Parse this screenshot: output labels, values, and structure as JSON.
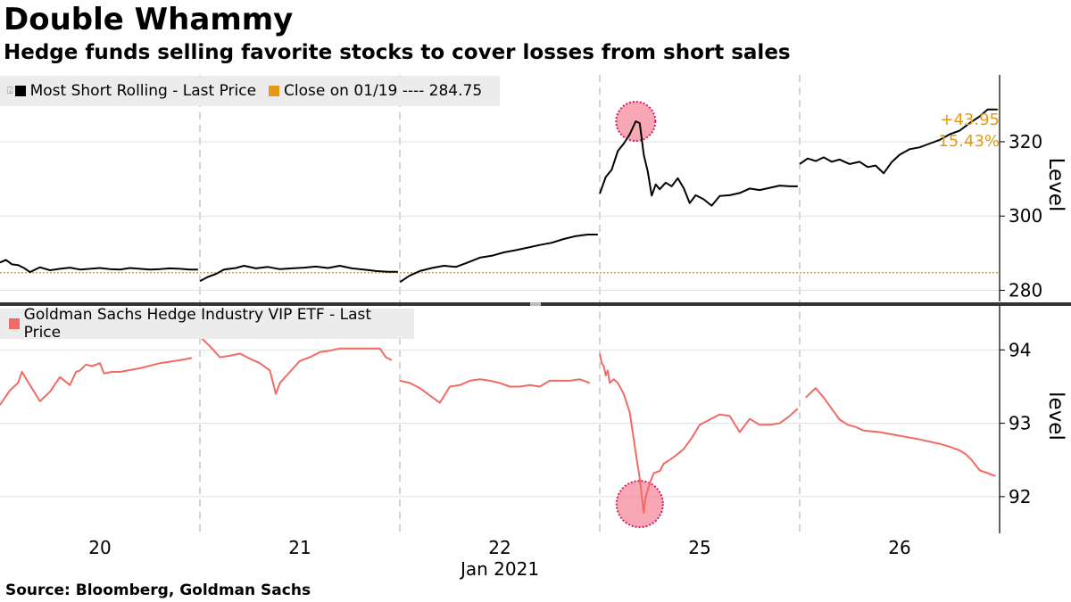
{
  "header": {
    "title": "Double Whammy",
    "subtitle": "Hedge funds selling favorite stocks to cover losses from short sales"
  },
  "footer": {
    "source": "Source: Bloomberg, Goldman Sachs"
  },
  "colors": {
    "top_line": "#000000",
    "close_line": "#e39a16",
    "bottom_line": "#f06b66",
    "highlight": "#f27a8c",
    "grid": "#bdbdbd"
  },
  "chart_data": [
    {
      "type": "line",
      "panel": "top",
      "legend": {
        "series": "Most Short Rolling - Last Price",
        "reference": "Close on 01/19 ---- 284.75"
      },
      "ylabel": "Level",
      "ylim": [
        277,
        338
      ],
      "yticks": [
        "280",
        "300",
        "320"
      ],
      "ytick_values": [
        280,
        300,
        320
      ],
      "reference_value": 284.75,
      "annotation": {
        "change": "+43.95",
        "percent": "15.43%"
      },
      "x_domain": [
        0,
        5
      ],
      "series": [
        {
          "name": "Most Short Rolling - Last Price",
          "segments": [
            {
              "x": [
                0.0,
                0.03,
                0.06,
                0.09,
                0.12,
                0.15,
                0.2,
                0.25,
                0.3,
                0.35,
                0.4,
                0.45,
                0.5,
                0.55,
                0.6,
                0.65,
                0.7,
                0.75,
                0.8,
                0.85,
                0.9,
                0.95,
                0.99
              ],
              "y": [
                287.5,
                288.2,
                287.0,
                286.8,
                286.0,
                284.9,
                286.2,
                285.4,
                285.8,
                286.1,
                285.6,
                285.8,
                286.0,
                285.7,
                285.6,
                286.0,
                285.8,
                285.6,
                285.7,
                285.9,
                285.8,
                285.6,
                285.6
              ]
            },
            {
              "x": [
                1.0,
                1.04,
                1.08,
                1.12,
                1.18,
                1.22,
                1.28,
                1.34,
                1.4,
                1.46,
                1.52,
                1.58,
                1.64,
                1.7,
                1.76,
                1.82,
                1.88,
                1.94,
                1.99
              ],
              "y": [
                282.5,
                283.6,
                284.4,
                285.6,
                286.0,
                286.6,
                285.9,
                286.3,
                285.7,
                285.9,
                286.1,
                286.4,
                286.0,
                286.6,
                285.9,
                285.6,
                285.2,
                285.0,
                285.0
              ]
            },
            {
              "x": [
                2.0,
                2.05,
                2.1,
                2.16,
                2.22,
                2.28,
                2.34,
                2.4,
                2.46,
                2.52,
                2.58,
                2.64,
                2.7,
                2.76,
                2.82,
                2.88,
                2.94,
                2.99
              ],
              "y": [
                282.2,
                284.0,
                285.2,
                286.0,
                286.6,
                286.3,
                287.5,
                288.8,
                289.3,
                290.2,
                290.8,
                291.5,
                292.2,
                292.8,
                293.8,
                294.6,
                295.0,
                295.0
              ]
            },
            {
              "x": [
                3.0,
                3.03,
                3.06,
                3.09,
                3.12,
                3.15,
                3.18,
                3.2,
                3.22,
                3.24,
                3.26,
                3.28,
                3.3,
                3.33,
                3.36,
                3.39,
                3.42,
                3.45,
                3.48,
                3.52,
                3.56,
                3.6,
                3.65,
                3.7,
                3.75,
                3.8,
                3.85,
                3.9,
                3.95,
                3.99
              ],
              "y": [
                306.0,
                310.5,
                312.5,
                317.5,
                319.5,
                322.0,
                325.5,
                325.0,
                316.5,
                312.0,
                305.5,
                308.5,
                307.2,
                309.0,
                308.0,
                310.2,
                307.5,
                303.5,
                305.6,
                304.5,
                302.8,
                305.4,
                305.6,
                306.2,
                307.4,
                307.0,
                307.6,
                308.2,
                308.0,
                308.0
              ]
            },
            {
              "x": [
                4.0,
                4.04,
                4.08,
                4.12,
                4.16,
                4.2,
                4.25,
                4.3,
                4.34,
                4.38,
                4.42,
                4.46,
                4.5,
                4.55,
                4.6,
                4.65,
                4.7,
                4.75,
                4.8,
                4.85,
                4.9,
                4.94,
                4.99
              ],
              "y": [
                314.0,
                315.5,
                314.8,
                315.8,
                314.6,
                315.2,
                314.0,
                314.6,
                313.2,
                313.6,
                311.5,
                314.5,
                316.5,
                318.0,
                318.5,
                319.5,
                320.5,
                322.0,
                323.0,
                325.0,
                326.8,
                328.7,
                328.7
              ]
            }
          ]
        },
        {
          "name": "Close on 01/19",
          "constant": 284.75
        }
      ]
    },
    {
      "type": "line",
      "panel": "bottom",
      "legend": {
        "series": "Goldman Sachs Hedge Industry VIP ETF - Last Price"
      },
      "ylabel": "level",
      "ylim": [
        91.5,
        94.6
      ],
      "yticks": [
        "92",
        "93",
        "94"
      ],
      "ytick_values": [
        92,
        93,
        94
      ],
      "x_domain": [
        0,
        5
      ],
      "x_ticks": [
        {
          "label": "20",
          "x": 0.5
        },
        {
          "label": "21",
          "x": 1.5
        },
        {
          "label": "22",
          "x": 2.5
        },
        {
          "label": "25",
          "x": 3.5
        },
        {
          "label": "26",
          "x": 4.5
        }
      ],
      "x_month_label": "Jan 2021",
      "series": [
        {
          "name": "Goldman Sachs Hedge Industry VIP ETF - Last Price",
          "segments": [
            {
              "x": [
                0.0,
                0.05,
                0.09,
                0.11,
                0.15,
                0.2,
                0.25,
                0.3,
                0.35,
                0.38,
                0.4,
                0.43,
                0.46,
                0.5,
                0.52,
                0.56,
                0.6,
                0.7,
                0.8,
                0.9,
                0.96
              ],
              "y": [
                93.25,
                93.45,
                93.55,
                93.7,
                93.52,
                93.3,
                93.43,
                93.63,
                93.52,
                93.7,
                93.72,
                93.8,
                93.78,
                93.82,
                93.68,
                93.7,
                93.7,
                93.75,
                93.82,
                93.86,
                93.89
              ]
            },
            {
              "x": [
                1.0,
                1.05,
                1.1,
                1.15,
                1.2,
                1.25,
                1.3,
                1.35,
                1.38,
                1.4,
                1.45,
                1.5,
                1.55,
                1.6,
                1.65,
                1.7,
                1.75,
                1.8,
                1.85,
                1.9,
                1.93,
                1.96
              ],
              "y": [
                94.18,
                94.05,
                93.9,
                93.92,
                93.95,
                93.88,
                93.82,
                93.72,
                93.4,
                93.55,
                93.7,
                93.85,
                93.9,
                93.97,
                93.99,
                94.02,
                94.02,
                94.02,
                94.02,
                94.02,
                93.9,
                93.86
              ]
            },
            {
              "x": [
                2.0,
                2.05,
                2.1,
                2.15,
                2.2,
                2.25,
                2.3,
                2.35,
                2.4,
                2.45,
                2.5,
                2.55,
                2.6,
                2.65,
                2.7,
                2.75,
                2.8,
                2.85,
                2.9,
                2.95
              ],
              "y": [
                93.58,
                93.55,
                93.48,
                93.38,
                93.28,
                93.5,
                93.52,
                93.58,
                93.6,
                93.58,
                93.55,
                93.5,
                93.5,
                93.52,
                93.5,
                93.58,
                93.58,
                93.58,
                93.6,
                93.55
              ]
            },
            {
              "x": [
                3.0,
                3.01,
                3.02,
                3.03,
                3.04,
                3.05,
                3.07,
                3.09,
                3.12,
                3.15,
                3.18,
                3.2,
                3.22,
                3.23,
                3.25,
                3.27,
                3.3,
                3.32,
                3.35,
                3.38,
                3.42,
                3.46,
                3.5,
                3.55,
                3.6,
                3.65,
                3.7,
                3.75,
                3.8,
                3.85,
                3.9,
                3.95,
                3.99
              ],
              "y": [
                93.95,
                93.82,
                93.78,
                93.65,
                93.72,
                93.55,
                93.6,
                93.55,
                93.4,
                93.15,
                92.6,
                92.25,
                91.78,
                92.0,
                92.18,
                92.32,
                92.35,
                92.45,
                92.5,
                92.56,
                92.65,
                92.8,
                92.98,
                93.05,
                93.12,
                93.1,
                92.88,
                93.06,
                92.98,
                92.98,
                93.0,
                93.1,
                93.2
              ]
            },
            {
              "x": [
                4.03,
                4.08,
                4.12,
                4.16,
                4.2,
                4.24,
                4.28,
                4.32,
                4.4,
                4.5,
                4.6,
                4.7,
                4.75,
                4.8,
                4.83,
                4.86,
                4.9,
                4.94,
                4.98
              ],
              "y": [
                93.35,
                93.48,
                93.35,
                93.2,
                93.05,
                92.98,
                92.95,
                92.9,
                92.88,
                92.83,
                92.78,
                92.72,
                92.68,
                92.63,
                92.58,
                92.5,
                92.36,
                92.32,
                92.28
              ]
            }
          ]
        }
      ],
      "highlights": [
        {
          "x": 3.2,
          "y": 91.9
        }
      ]
    }
  ]
}
